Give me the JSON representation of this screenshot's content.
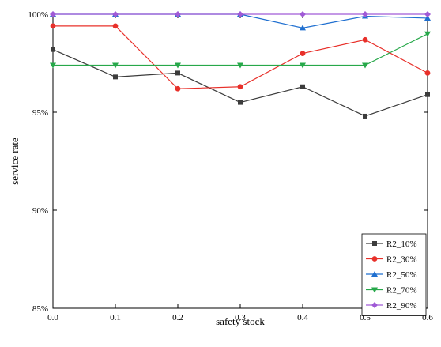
{
  "chart_data": {
    "type": "line",
    "title": "",
    "xlabel": "safety stock",
    "ylabel": "service rate",
    "x": [
      0.0,
      0.1,
      0.2,
      0.3,
      0.4,
      0.5,
      0.6
    ],
    "xlim": [
      0.0,
      0.6
    ],
    "ylim": [
      0.85,
      1.0
    ],
    "x_ticks": [
      "0.0",
      "0.1",
      "0.2",
      "0.3",
      "0.4",
      "0.5",
      "0.6"
    ],
    "y_ticks": [
      "85%",
      "90%",
      "95%",
      "100%"
    ],
    "y_tick_values": [
      0.85,
      0.9,
      0.95,
      1.0
    ],
    "grid": false,
    "legend_position": "bottom-right",
    "series": [
      {
        "name": "R2_10%",
        "color": "#3c3c3c",
        "marker": "square",
        "values": [
          0.982,
          0.968,
          0.97,
          0.955,
          0.963,
          0.948,
          0.959
        ]
      },
      {
        "name": "R2_30%",
        "color": "#e8302a",
        "marker": "circle",
        "values": [
          0.994,
          0.994,
          0.962,
          0.963,
          0.98,
          0.987,
          0.97
        ]
      },
      {
        "name": "R2_50%",
        "color": "#1f6fd0",
        "marker": "triangle-up",
        "values": [
          1.0,
          1.0,
          1.0,
          1.0,
          0.993,
          0.999,
          0.998
        ]
      },
      {
        "name": "R2_70%",
        "color": "#27a84a",
        "marker": "triangle-down",
        "values": [
          0.974,
          0.974,
          0.974,
          0.974,
          0.974,
          0.974,
          0.99
        ]
      },
      {
        "name": "R2_90%",
        "color": "#a05ad6",
        "marker": "diamond",
        "values": [
          1.0,
          1.0,
          1.0,
          1.0,
          1.0,
          1.0,
          1.0
        ]
      }
    ]
  }
}
